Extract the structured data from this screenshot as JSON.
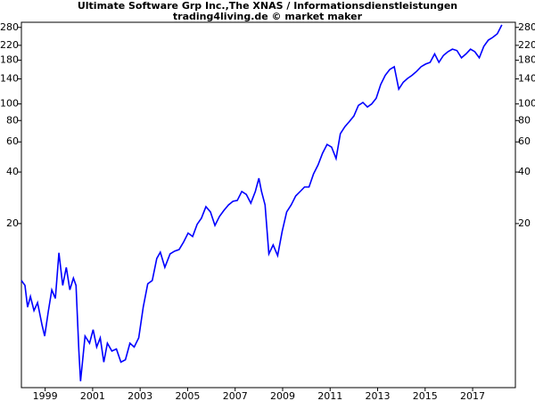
{
  "chart_data": {
    "type": "line",
    "title": "Ultimate Software Grp Inc.,The XNAS / Informationsdienstleistungen",
    "subtitle": "trading4living.de © market maker",
    "log_y": true,
    "grid": false,
    "xlim": [
      1998.0,
      2018.8
    ],
    "xticks": [
      1999,
      2001,
      2003,
      2005,
      2007,
      2009,
      2011,
      2013,
      2015,
      2017
    ],
    "ylim": [
      2.2,
      300
    ],
    "yticks": [
      20,
      40,
      60,
      80,
      100,
      140,
      180,
      220,
      280
    ],
    "x": [
      1998.0,
      1998.15,
      1998.26,
      1998.38,
      1998.53,
      1998.68,
      1998.87,
      1998.98,
      1999.13,
      1999.28,
      1999.43,
      1999.58,
      1999.74,
      1999.89,
      2000.04,
      2000.19,
      2000.3,
      2000.42,
      2000.49,
      2000.6,
      2000.68,
      2000.87,
      2001.02,
      2001.17,
      2001.32,
      2001.47,
      2001.62,
      2001.81,
      2002.0,
      2002.19,
      2002.38,
      2002.57,
      2002.75,
      2002.94,
      2003.13,
      2003.32,
      2003.51,
      2003.7,
      2003.85,
      2004.04,
      2004.26,
      2004.45,
      2004.64,
      2004.83,
      2005.02,
      2005.21,
      2005.4,
      2005.58,
      2005.77,
      2005.96,
      2006.15,
      2006.34,
      2006.53,
      2006.72,
      2006.91,
      2007.09,
      2007.28,
      2007.47,
      2007.66,
      2007.85,
      2008.0,
      2008.11,
      2008.26,
      2008.42,
      2008.6,
      2008.79,
      2008.98,
      2009.17,
      2009.36,
      2009.55,
      2009.74,
      2009.92,
      2010.11,
      2010.3,
      2010.49,
      2010.68,
      2010.87,
      2011.06,
      2011.25,
      2011.43,
      2011.62,
      2011.81,
      2012.0,
      2012.19,
      2012.38,
      2012.57,
      2012.75,
      2012.94,
      2013.13,
      2013.32,
      2013.51,
      2013.7,
      2013.89,
      2014.08,
      2014.26,
      2014.45,
      2014.64,
      2014.83,
      2015.02,
      2015.21,
      2015.4,
      2015.58,
      2015.77,
      2015.96,
      2016.15,
      2016.34,
      2016.53,
      2016.72,
      2016.91,
      2017.09,
      2017.28,
      2017.47,
      2017.66,
      2017.85,
      2018.04,
      2018.23
    ],
    "series": [
      {
        "color": "#0000ff",
        "values": [
          9.3,
          8.7,
          6.5,
          7.5,
          6.2,
          6.9,
          5.1,
          4.4,
          6.1,
          8.2,
          7.3,
          13.5,
          8.7,
          11.1,
          8.2,
          9.6,
          8.7,
          3.6,
          2.4,
          3.4,
          4.4,
          4.0,
          4.8,
          3.8,
          4.3,
          3.1,
          4.0,
          3.6,
          3.7,
          3.1,
          3.2,
          4.0,
          3.8,
          4.3,
          6.5,
          8.9,
          9.3,
          12.5,
          13.6,
          11.1,
          13.3,
          13.8,
          14.1,
          15.6,
          17.6,
          16.8,
          19.8,
          21.5,
          25.1,
          23.4,
          19.5,
          22,
          23.9,
          25.7,
          27.0,
          27.3,
          30.8,
          29.6,
          26.3,
          30.8,
          36.8,
          30.8,
          25.7,
          13.3,
          15.0,
          13.0,
          18.0,
          23.4,
          25.7,
          29,
          30.8,
          32.7,
          32.7,
          39,
          44,
          51.5,
          58,
          56,
          48,
          67,
          73.6,
          78.9,
          85,
          98,
          102,
          96,
          100,
          108,
          130,
          147,
          159,
          165,
          122,
          134,
          141,
          147,
          155,
          165,
          171,
          175,
          196,
          175,
          192,
          202,
          209,
          205,
          186,
          196,
          209,
          202,
          186,
          217,
          236,
          245,
          257,
          290
        ]
      }
    ]
  }
}
